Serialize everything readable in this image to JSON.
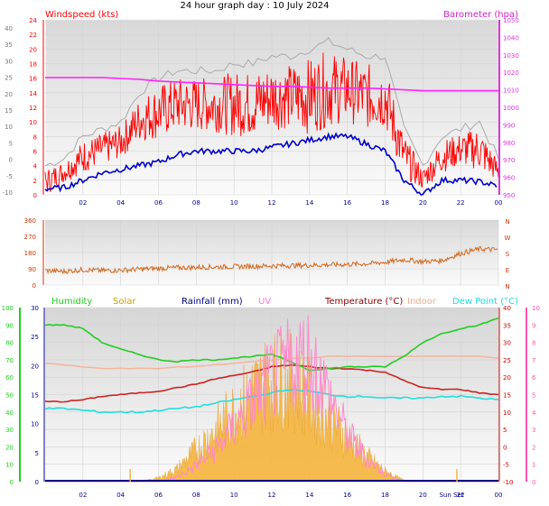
{
  "title": "24 hour graph day : 10 July 2024",
  "colors": {
    "plot_bg": "#e4e4e4",
    "plot_bg_light": "#f7f7f7",
    "grid": "#d2d2d2",
    "windspeed": "#ff0000",
    "windavg": "#0000c8",
    "gust_peak": "#aaaaaa",
    "barometer": "#ff22ff",
    "direction": "#d2691e",
    "humidity": "#22cc22",
    "solar": "#f5b43c",
    "solar_label": "#c8a000",
    "rainfall": "#000080",
    "uv": "#ff88cc",
    "uv_label": "#ff77dd",
    "temperature": "#cc2222",
    "temperature_label": "#8b0000",
    "indoor": "#f5b49a",
    "indoor_label": "#f0b090",
    "dewpoint": "#22dddd",
    "axis_left_wind": "#ff0000",
    "axis_right_baro": "#dd33dd",
    "axis_left_dir": "#cc3300",
    "axis_humid": "#22cc22",
    "axis_rain": "#000099",
    "axis_temp": "#cc0000",
    "axis_uv": "#ff55aa"
  },
  "x_ticks": [
    "02",
    "04",
    "06",
    "08",
    "10",
    "12",
    "14",
    "16",
    "18",
    "20",
    "22",
    "00"
  ],
  "panel1": {
    "left_label": "Windspeed (kts)",
    "right_label": "Barometer (hpa)",
    "left_outer_ticks": [
      "40",
      "35",
      "30",
      "25",
      "20",
      "15",
      "10",
      "5",
      "0",
      "-5",
      "-10"
    ],
    "left_inner_ticks": [
      "24",
      "22",
      "20",
      "18",
      "16",
      "14",
      "12",
      "10",
      "8",
      "6",
      "4",
      "2",
      "0"
    ],
    "right_ticks": [
      "1050",
      "1040",
      "1030",
      "1020",
      "1010",
      "1000",
      "990",
      "980",
      "970",
      "960",
      "950"
    ]
  },
  "panel2": {
    "left_ticks": [
      "360",
      "270",
      "180",
      "90",
      "0"
    ],
    "right_ticks": [
      "N",
      "W",
      "S",
      "E",
      "N"
    ]
  },
  "panel3": {
    "labels": {
      "humidity": "Humidity",
      "solar": "Solar",
      "rainfall": "Rainfall (mm)",
      "uv": "UV",
      "temperature": "Temperature (°C)",
      "indoor": "Indoor",
      "dewpoint": "Dew Point (°C)"
    },
    "humid_ticks": [
      "100",
      "90",
      "80",
      "70",
      "60",
      "50",
      "40",
      "30",
      "20",
      "10",
      "0"
    ],
    "rain_ticks": [
      "30",
      "25",
      "20",
      "15",
      "10",
      "5",
      "0"
    ],
    "temp_ticks": [
      "40",
      "35",
      "30",
      "25",
      "20",
      "15",
      "10",
      "5",
      "0",
      "-5",
      "-10"
    ],
    "uv_ticks": [
      "10",
      "9",
      "8",
      "7",
      "6",
      "5",
      "4",
      "3",
      "2",
      "1",
      "0"
    ],
    "sun_set_label": "Sun Set"
  },
  "chart_data": [
    {
      "type": "line",
      "title": "",
      "ylabel": "Windspeed (kts)",
      "y2label": "Barometer (hpa)",
      "xlabel": "",
      "x_hours": [
        0,
        1,
        2,
        3,
        4,
        5,
        6,
        7,
        8,
        9,
        10,
        11,
        12,
        13,
        14,
        15,
        16,
        17,
        18,
        19,
        20,
        21,
        22,
        23,
        24
      ],
      "ylim": [
        0,
        24
      ],
      "y2lim": [
        950,
        1050
      ],
      "series": [
        {
          "name": "Windspeed (kts)",
          "values": [
            1.5,
            3,
            5,
            6,
            7,
            10,
            11,
            12,
            12,
            12,
            12,
            12,
            13,
            13,
            13,
            14,
            14,
            13,
            13,
            5,
            2,
            5,
            6,
            6,
            3
          ]
        },
        {
          "name": "Gust",
          "values": [
            4,
            5,
            8,
            9,
            10,
            14,
            16,
            17,
            17,
            17,
            18,
            18,
            19,
            19,
            20,
            21,
            20,
            19,
            19,
            9,
            4,
            8,
            9,
            10,
            5
          ]
        },
        {
          "name": "Average",
          "values": [
            0.8,
            1,
            2,
            3,
            3.5,
            4,
            4.5,
            5.5,
            6,
            6,
            6,
            6,
            6.5,
            7,
            7.5,
            8,
            8,
            7,
            6,
            2,
            0,
            2,
            2,
            1.8,
            1.2
          ]
        },
        {
          "name": "Barometer (hpa)",
          "values": [
            1017,
            1017,
            1017,
            1017,
            1016.5,
            1016,
            1015,
            1014.5,
            1014,
            1013.5,
            1013,
            1012.5,
            1012,
            1012,
            1011.5,
            1011,
            1011,
            1011,
            1010.5,
            1010,
            1009.5,
            1009.5,
            1009.5,
            1009.5,
            1009.5
          ]
        }
      ]
    },
    {
      "type": "line",
      "title": "",
      "ylabel": "",
      "xlabel": "",
      "x_hours": [
        0,
        1,
        2,
        3,
        4,
        5,
        6,
        7,
        8,
        9,
        10,
        11,
        12,
        13,
        14,
        15,
        16,
        17,
        18,
        19,
        20,
        21,
        22,
        23,
        24
      ],
      "ylim": [
        0,
        360
      ],
      "series": [
        {
          "name": "Wind direction",
          "values": [
            80,
            75,
            85,
            80,
            82,
            88,
            92,
            96,
            98,
            100,
            102,
            104,
            106,
            108,
            110,
            112,
            114,
            118,
            126,
            140,
            130,
            135,
            175,
            200,
            195
          ]
        }
      ]
    },
    {
      "type": "line",
      "title": "",
      "xlabel": "",
      "x_hours": [
        0,
        1,
        2,
        3,
        4,
        5,
        6,
        7,
        8,
        9,
        10,
        11,
        12,
        13,
        14,
        15,
        16,
        17,
        18,
        19,
        20,
        21,
        22,
        23,
        24
      ],
      "series": [
        {
          "name": "Humidity",
          "axis": "humidity",
          "ylim": [
            0,
            100
          ],
          "values": [
            90,
            90,
            88,
            80,
            76,
            73,
            70,
            69,
            70,
            70,
            71,
            72,
            73,
            69,
            64,
            65,
            66,
            66,
            66,
            72,
            80,
            85,
            88,
            90,
            94
          ]
        },
        {
          "name": "Temperature (°C)",
          "axis": "temperature",
          "ylim": [
            -10,
            40
          ],
          "values": [
            13,
            13,
            13.5,
            14.5,
            15,
            15.5,
            16,
            17,
            18,
            19.5,
            20.5,
            21.5,
            23,
            23.5,
            23,
            22.5,
            22.5,
            22,
            21.5,
            19,
            17,
            16.5,
            16.5,
            15.5,
            15
          ]
        },
        {
          "name": "Indoor",
          "axis": "temperature",
          "ylim": [
            -10,
            40
          ],
          "values": [
            24,
            23.5,
            23,
            22.5,
            22.5,
            22.5,
            22.5,
            23,
            23,
            23.5,
            24,
            24.5,
            25,
            25.5,
            25.5,
            26,
            26,
            26,
            26,
            26,
            26,
            26,
            26,
            26,
            25.5
          ]
        },
        {
          "name": "Dew Point (°C)",
          "axis": "temperature",
          "ylim": [
            -10,
            40
          ],
          "values": [
            11,
            11,
            10.5,
            10,
            10,
            10,
            10.5,
            11,
            11.5,
            12.5,
            13.5,
            14.5,
            15.5,
            16.5,
            16,
            15,
            14.5,
            14.5,
            14,
            14,
            14,
            14.5,
            14.5,
            14,
            13.5
          ]
        },
        {
          "name": "Solar",
          "axis": "solar",
          "ylim": [
            0,
            1000
          ],
          "values": [
            0,
            0,
            0,
            0,
            0,
            0,
            30,
            100,
            250,
            400,
            550,
            700,
            800,
            800,
            650,
            500,
            350,
            200,
            80,
            10,
            0,
            0,
            0,
            0,
            0
          ]
        },
        {
          "name": "UV",
          "axis": "uv",
          "ylim": [
            0,
            10
          ],
          "values": [
            0,
            0,
            0,
            0,
            0,
            0,
            0,
            0.3,
            1,
            2,
            3.5,
            5,
            6.5,
            7.5,
            8,
            5.5,
            3,
            1.5,
            0.5,
            0,
            0,
            0,
            0,
            0,
            0
          ]
        },
        {
          "name": "Rainfall (mm)",
          "axis": "rainfall",
          "ylim": [
            0,
            30
          ],
          "values": [
            0,
            0,
            0,
            0,
            0,
            0,
            0,
            0,
            0,
            0,
            0,
            0,
            0,
            0,
            0,
            0,
            0,
            0,
            0,
            0,
            0,
            0,
            0,
            0,
            0
          ]
        }
      ]
    }
  ]
}
